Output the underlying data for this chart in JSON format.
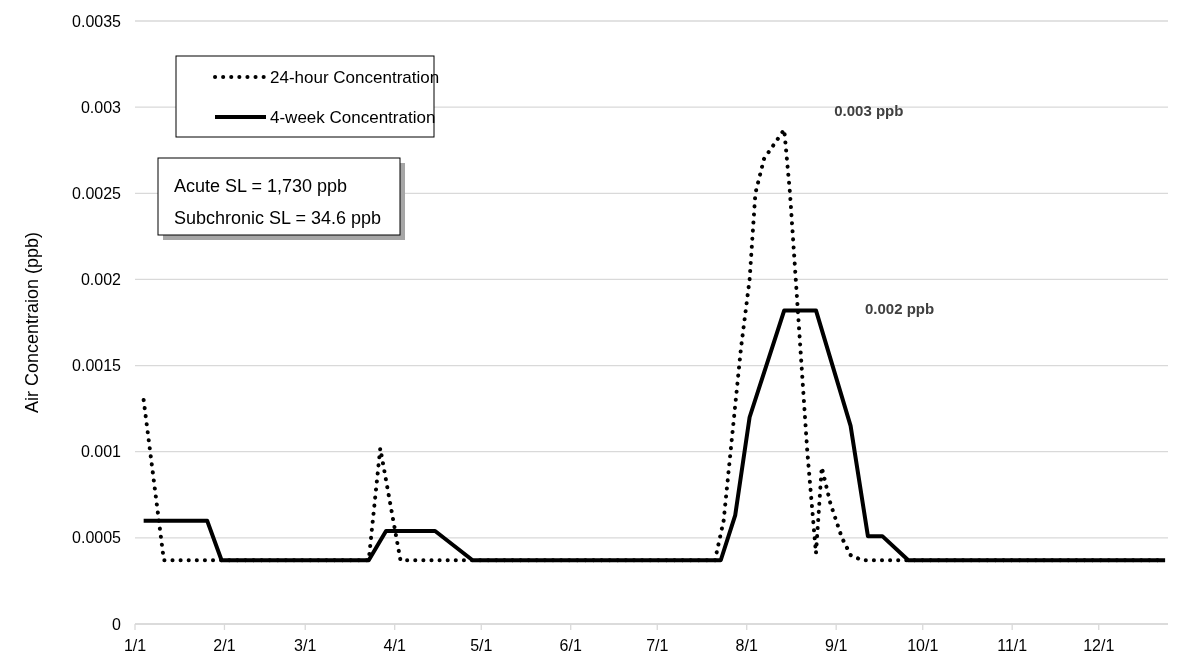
{
  "chart_data": {
    "type": "line",
    "ylabel": "Air Concentraion (ppb)",
    "xlim": [
      "--01-01",
      "--12-25"
    ],
    "xticks": [
      {
        "value": "--01-01",
        "label": "1/1"
      },
      {
        "value": "--02-01",
        "label": "2/1"
      },
      {
        "value": "--03-01",
        "label": "3/1"
      },
      {
        "value": "--04-01",
        "label": "4/1"
      },
      {
        "value": "--05-01",
        "label": "5/1"
      },
      {
        "value": "--06-01",
        "label": "6/1"
      },
      {
        "value": "--07-01",
        "label": "7/1"
      },
      {
        "value": "--08-01",
        "label": "8/1"
      },
      {
        "value": "--09-01",
        "label": "9/1"
      },
      {
        "value": "--10-01",
        "label": "10/1"
      },
      {
        "value": "--11-01",
        "label": "11/1"
      },
      {
        "value": "--12-01",
        "label": "12/1"
      }
    ],
    "ylim": [
      0,
      0.0035
    ],
    "yticks": [
      0,
      0.0005,
      0.001,
      0.0015,
      0.002,
      0.0025,
      0.003,
      0.0035
    ],
    "grid": "y",
    "legend": "top left",
    "series": [
      {
        "name": "24-hour Concentration",
        "color": "#000000",
        "line_style": "dotted",
        "x": [
          "--01-04",
          "--01-11",
          "--03-23",
          "--03-27",
          "--04-03",
          "--07-21",
          "--07-24",
          "--07-27",
          "--07-30",
          "--08-02",
          "--08-04",
          "--08-07",
          "--08-14",
          "--08-16",
          "--08-18",
          "--08-20",
          "--08-22",
          "--08-25",
          "--08-27",
          "--08-30",
          "--09-03",
          "--09-06",
          "--09-10",
          "--12-24"
        ],
        "values": [
          0.0013,
          0.00037,
          0.00037,
          0.00102,
          0.00037,
          0.00037,
          0.0006,
          0.0011,
          0.0016,
          0.002,
          0.0025,
          0.0027,
          0.00287,
          0.0025,
          0.002,
          0.0015,
          0.001,
          0.00041,
          0.00091,
          0.0007,
          0.0005,
          0.0004,
          0.00037,
          0.00037
        ]
      },
      {
        "name": "4-week Concentration",
        "color": "#000000",
        "line_style": "solid",
        "x": [
          "--01-04",
          "--01-26",
          "--01-31",
          "--03-23",
          "--03-29",
          "--04-15",
          "--04-28",
          "--07-23",
          "--07-28",
          "--08-02",
          "--08-14",
          "--08-25",
          "--09-06",
          "--09-12",
          "--09-17",
          "--09-26",
          "--12-24"
        ],
        "values": [
          0.0006,
          0.0006,
          0.00037,
          0.00037,
          0.00054,
          0.00054,
          0.00037,
          0.00037,
          0.00063,
          0.0012,
          0.00182,
          0.00182,
          0.00115,
          0.00051,
          0.00051,
          0.00037,
          0.00037
        ]
      }
    ],
    "annotations": [
      "0.003 ppb",
      "0.002 ppb",
      "Acute SL = 1,730 ppb",
      "Subchronic SL = 34.6 ppb"
    ]
  }
}
